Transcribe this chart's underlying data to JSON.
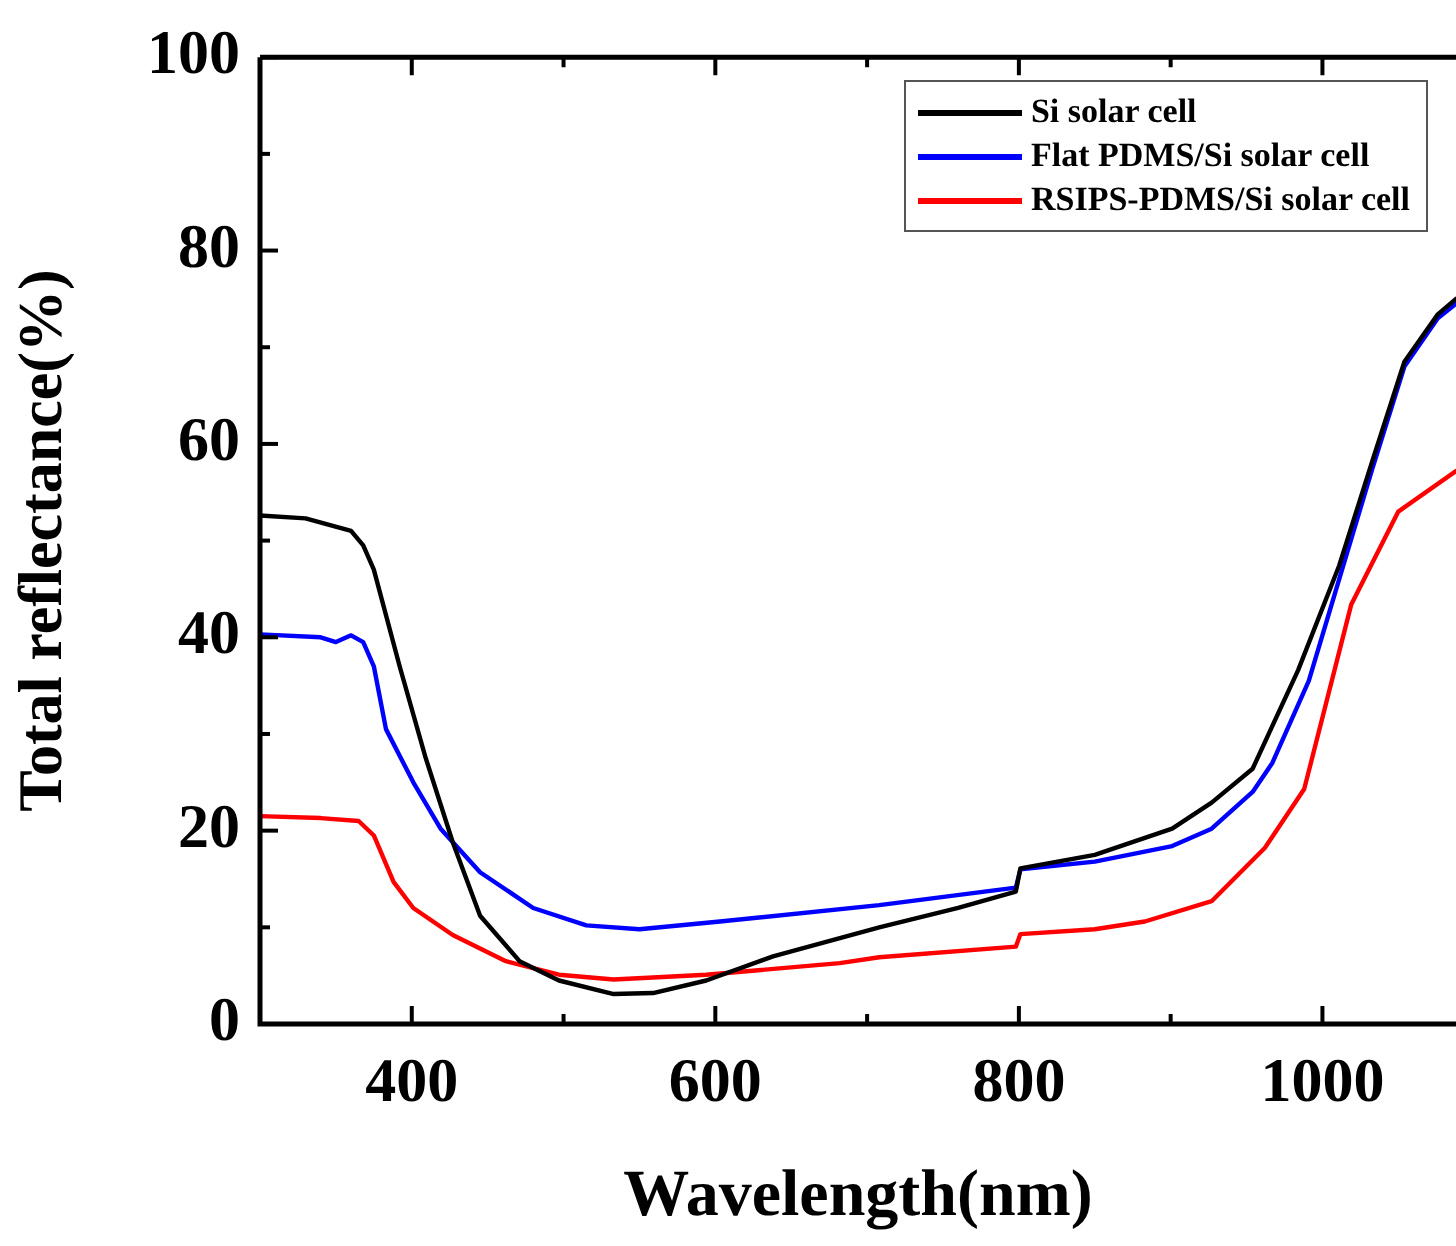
{
  "chart_data": {
    "type": "line",
    "xlabel": "Wavelength(nm)",
    "ylabel": "Total reflectance(%)",
    "xlim": [
      300,
      1088
    ],
    "xticks": [
      400,
      {
        "value": 500,
        "label": null
      },
      600,
      {
        "value": 700,
        "label": null
      },
      800,
      {
        "value": 900,
        "label": null
      },
      1000
    ],
    "ylim": [
      0,
      100
    ],
    "yticks": [
      0,
      {
        "value": 10,
        "label": null
      },
      20,
      {
        "value": 30,
        "label": null
      },
      40,
      {
        "value": 50,
        "label": null
      },
      60,
      {
        "value": 70,
        "label": null
      },
      80,
      {
        "value": 90,
        "label": null
      },
      100
    ],
    "grid": false,
    "legend": "top right",
    "marker": "none",
    "line_style": "solid",
    "series": [
      {
        "name": "Si solar cell",
        "color": "#000000",
        "x": [
          300,
          330,
          360,
          368,
          375,
          392,
          409,
          427,
          445,
          471,
          497,
          533,
          559,
          594,
          638,
          708,
          760,
          798,
          801,
          850,
          901,
          927,
          954,
          984,
          1011,
          1033,
          1054,
          1076,
          1088
        ],
        "values": [
          52.6,
          52.3,
          51,
          49.5,
          47,
          37,
          27.6,
          18.8,
          11.2,
          6.5,
          4.5,
          3.1,
          3.2,
          4.5,
          7,
          10,
          12,
          13.7,
          16.1,
          17.5,
          20.2,
          22.9,
          26.4,
          36.6,
          47.4,
          58.3,
          68.5,
          73.4,
          75
        ]
      },
      {
        "name": "Flat PDMS/Si solar cell",
        "color": "#0000ff",
        "x": [
          300,
          340,
          350,
          360,
          368,
          375,
          383,
          401,
          419,
          445,
          480,
          515,
          550,
          603,
          708,
          798,
          801,
          850,
          901,
          927,
          954,
          967,
          991,
          1011,
          1033,
          1054,
          1076,
          1088
        ],
        "values": [
          40.3,
          40,
          39.5,
          40.2,
          39.5,
          37,
          30.5,
          25,
          20.2,
          15.7,
          12,
          10.2,
          9.8,
          10.6,
          12.3,
          14.1,
          16,
          16.8,
          18.4,
          20.2,
          24,
          27,
          35.5,
          46,
          57.5,
          68,
          73,
          74.5
        ]
      },
      {
        "name": "RSIPS-PDMS/Si solar cell",
        "color": "#ff0000",
        "x": [
          300,
          340,
          365,
          375,
          388,
          401,
          427,
          462,
          497,
          533,
          594,
          682,
          708,
          798,
          801,
          850,
          883,
          927,
          962,
          988,
          1019,
          1050,
          1088
        ],
        "values": [
          21.5,
          21.3,
          21,
          19.5,
          14.7,
          12,
          9.2,
          6.5,
          5.1,
          4.6,
          5.1,
          6.3,
          6.9,
          8,
          9.3,
          9.8,
          10.6,
          12.7,
          18.2,
          24.3,
          43.4,
          53,
          57.2
        ]
      }
    ]
  }
}
